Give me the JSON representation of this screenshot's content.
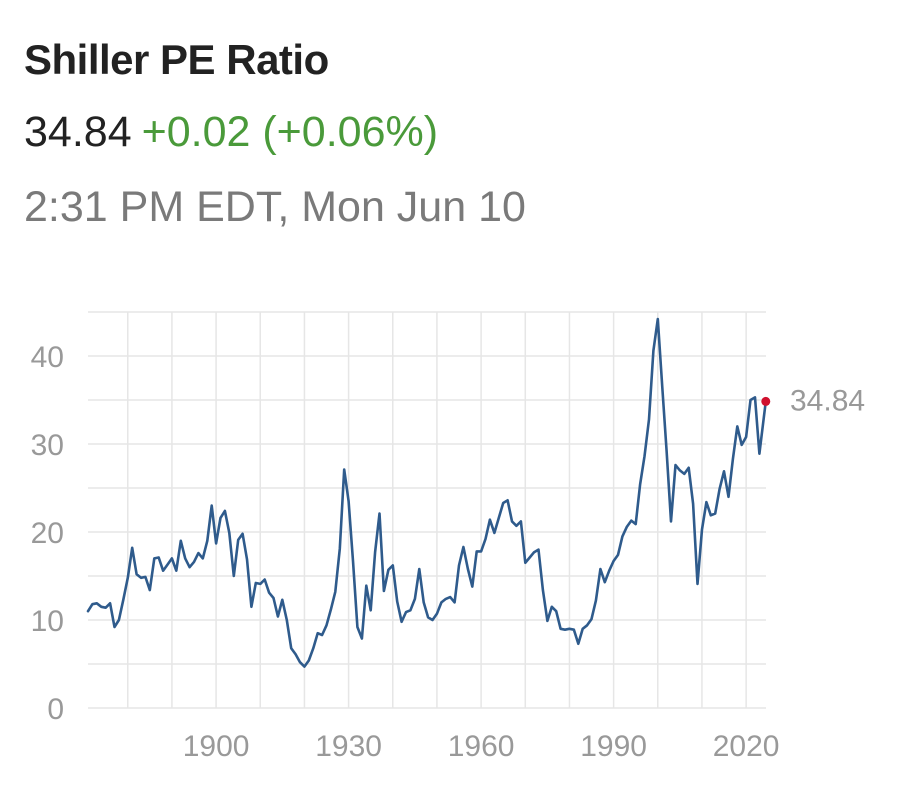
{
  "header": {
    "title": "Shiller PE Ratio",
    "price": "34.84",
    "change": "+0.02 (+0.06%)",
    "timestamp": "2:31 PM EDT, Mon Jun 10"
  },
  "colors": {
    "line": "#2f5b8c",
    "positive_change": "#4a9a3a",
    "last_point": "#d0102e",
    "grid": "#e6e6e6",
    "tick_text": "#999999"
  },
  "chart_data": {
    "type": "line",
    "title": "",
    "xlabel": "",
    "ylabel": "",
    "xlim": [
      1871,
      2024.5
    ],
    "ylim": [
      0,
      45
    ],
    "x_ticks": [
      1900,
      1930,
      1960,
      1990,
      2020
    ],
    "y_ticks": [
      0,
      10,
      20,
      30,
      40
    ],
    "grid": true,
    "last_value_label": "34.84",
    "series": [
      {
        "name": "",
        "points": [
          [
            1871,
            11.0
          ],
          [
            1872,
            11.8
          ],
          [
            1873,
            11.9
          ],
          [
            1874,
            11.5
          ],
          [
            1875,
            11.4
          ],
          [
            1876,
            11.9
          ],
          [
            1877,
            9.2
          ],
          [
            1878,
            10.0
          ],
          [
            1879,
            12.3
          ],
          [
            1880,
            14.8
          ],
          [
            1881,
            18.2
          ],
          [
            1882,
            15.2
          ],
          [
            1883,
            14.8
          ],
          [
            1884,
            14.9
          ],
          [
            1885,
            13.4
          ],
          [
            1886,
            17.0
          ],
          [
            1887,
            17.1
          ],
          [
            1888,
            15.6
          ],
          [
            1889,
            16.3
          ],
          [
            1890,
            17.0
          ],
          [
            1891,
            15.6
          ],
          [
            1892,
            19.0
          ],
          [
            1893,
            17.0
          ],
          [
            1894,
            16.0
          ],
          [
            1895,
            16.6
          ],
          [
            1896,
            17.6
          ],
          [
            1897,
            17.0
          ],
          [
            1898,
            19.0
          ],
          [
            1899,
            23.0
          ],
          [
            1900,
            18.7
          ],
          [
            1901,
            21.6
          ],
          [
            1902,
            22.4
          ],
          [
            1903,
            19.9
          ],
          [
            1904,
            15.0
          ],
          [
            1905,
            19.1
          ],
          [
            1906,
            19.8
          ],
          [
            1907,
            16.9
          ],
          [
            1908,
            11.5
          ],
          [
            1909,
            14.2
          ],
          [
            1910,
            14.1
          ],
          [
            1911,
            14.6
          ],
          [
            1912,
            13.1
          ],
          [
            1913,
            12.5
          ],
          [
            1914,
            10.4
          ],
          [
            1915,
            12.3
          ],
          [
            1916,
            10.0
          ],
          [
            1917,
            6.8
          ],
          [
            1918,
            6.1
          ],
          [
            1919,
            5.2
          ],
          [
            1920,
            4.7
          ],
          [
            1921,
            5.4
          ],
          [
            1922,
            6.8
          ],
          [
            1923,
            8.5
          ],
          [
            1924,
            8.3
          ],
          [
            1925,
            9.4
          ],
          [
            1926,
            11.2
          ],
          [
            1927,
            13.2
          ],
          [
            1928,
            18.1
          ],
          [
            1929,
            27.1
          ],
          [
            1930,
            23.5
          ],
          [
            1931,
            16.7
          ],
          [
            1932,
            9.2
          ],
          [
            1933,
            7.9
          ],
          [
            1934,
            13.9
          ],
          [
            1935,
            11.1
          ],
          [
            1936,
            17.7
          ],
          [
            1937,
            22.1
          ],
          [
            1938,
            13.3
          ],
          [
            1939,
            15.7
          ],
          [
            1940,
            16.2
          ],
          [
            1941,
            12.1
          ],
          [
            1942,
            9.8
          ],
          [
            1943,
            10.9
          ],
          [
            1944,
            11.1
          ],
          [
            1945,
            12.4
          ],
          [
            1946,
            15.8
          ],
          [
            1947,
            12.0
          ],
          [
            1948,
            10.3
          ],
          [
            1949,
            10.0
          ],
          [
            1950,
            10.7
          ],
          [
            1951,
            12.0
          ],
          [
            1952,
            12.4
          ],
          [
            1953,
            12.6
          ],
          [
            1954,
            12.0
          ],
          [
            1955,
            16.2
          ],
          [
            1956,
            18.3
          ],
          [
            1957,
            15.8
          ],
          [
            1958,
            13.8
          ],
          [
            1959,
            17.8
          ],
          [
            1960,
            17.8
          ],
          [
            1961,
            19.2
          ],
          [
            1962,
            21.4
          ],
          [
            1963,
            19.9
          ],
          [
            1964,
            21.6
          ],
          [
            1965,
            23.3
          ],
          [
            1966,
            23.6
          ],
          [
            1967,
            21.2
          ],
          [
            1968,
            20.7
          ],
          [
            1969,
            21.2
          ],
          [
            1970,
            16.5
          ],
          [
            1971,
            17.1
          ],
          [
            1972,
            17.7
          ],
          [
            1973,
            18.0
          ],
          [
            1974,
            13.4
          ],
          [
            1975,
            9.9
          ],
          [
            1976,
            11.5
          ],
          [
            1977,
            11.0
          ],
          [
            1978,
            9.0
          ],
          [
            1979,
            8.9
          ],
          [
            1980,
            9.0
          ],
          [
            1981,
            8.9
          ],
          [
            1982,
            7.3
          ],
          [
            1983,
            9.0
          ],
          [
            1984,
            9.4
          ],
          [
            1985,
            10.1
          ],
          [
            1986,
            12.2
          ],
          [
            1987,
            15.8
          ],
          [
            1988,
            14.3
          ],
          [
            1989,
            15.6
          ],
          [
            1990,
            16.7
          ],
          [
            1991,
            17.4
          ],
          [
            1992,
            19.5
          ],
          [
            1993,
            20.6
          ],
          [
            1994,
            21.3
          ],
          [
            1995,
            20.9
          ],
          [
            1996,
            25.4
          ],
          [
            1997,
            28.6
          ],
          [
            1998,
            32.8
          ],
          [
            1999,
            40.6
          ],
          [
            2000,
            44.2
          ],
          [
            2001,
            36.6
          ],
          [
            2002,
            29.2
          ],
          [
            2003,
            21.2
          ],
          [
            2004,
            27.6
          ],
          [
            2005,
            27.0
          ],
          [
            2006,
            26.6
          ],
          [
            2007,
            27.3
          ],
          [
            2008,
            23.2
          ],
          [
            2009,
            14.1
          ],
          [
            2010,
            20.3
          ],
          [
            2011,
            23.4
          ],
          [
            2012,
            21.9
          ],
          [
            2013,
            22.1
          ],
          [
            2014,
            24.9
          ],
          [
            2015,
            26.9
          ],
          [
            2016,
            24.0
          ],
          [
            2017,
            28.3
          ],
          [
            2018,
            32.0
          ],
          [
            2019,
            29.9
          ],
          [
            2020,
            30.8
          ],
          [
            2021,
            35.0
          ],
          [
            2022,
            35.3
          ],
          [
            2023,
            28.9
          ],
          [
            2024,
            33.0
          ],
          [
            2024.45,
            34.84
          ]
        ]
      }
    ]
  }
}
